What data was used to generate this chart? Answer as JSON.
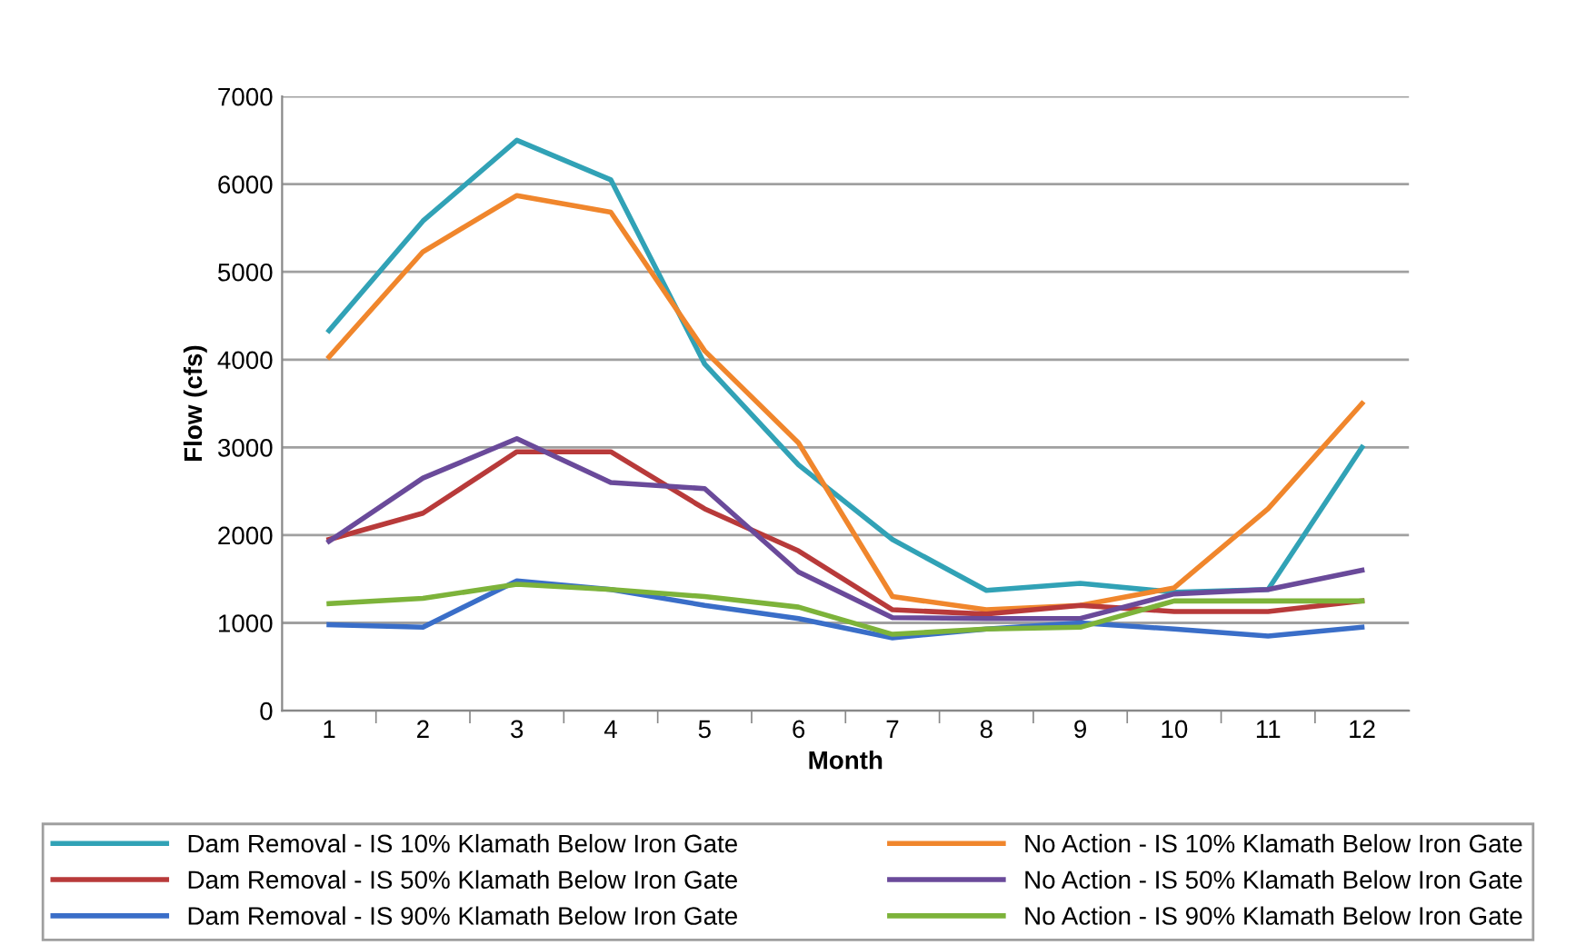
{
  "chart_data": {
    "type": "line",
    "xlabel": "Month",
    "ylabel": "Flow (cfs)",
    "categories": [
      "1",
      "2",
      "3",
      "4",
      "5",
      "6",
      "7",
      "8",
      "9",
      "10",
      "11",
      "12"
    ],
    "ylim": [
      0,
      7000
    ],
    "yticks": [
      0,
      1000,
      2000,
      3000,
      4000,
      5000,
      6000,
      7000
    ],
    "grid": "y",
    "legend": "bottom",
    "marker": "none",
    "line_style": "solid",
    "series": [
      {
        "name": "Dam Removal - IS 10% Klamath Below Iron Gate",
        "color": "#31a2b6",
        "values": [
          4330,
          5580,
          6500,
          6050,
          3950,
          2800,
          1950,
          1370,
          1450,
          1350,
          1380,
          3000
        ]
      },
      {
        "name": "No Action - IS 10% Klamath Below Iron Gate",
        "color": "#f0862c",
        "values": [
          4030,
          5230,
          5870,
          5680,
          4100,
          3050,
          1300,
          1150,
          1200,
          1400,
          2300,
          3500
        ]
      },
      {
        "name": "Dam Removal - IS 50% Klamath Below Iron Gate",
        "color": "#b83a3a",
        "values": [
          1950,
          2250,
          2950,
          2950,
          2300,
          1820,
          1150,
          1100,
          1200,
          1130,
          1130,
          1250
        ]
      },
      {
        "name": "No Action - IS 50% Klamath Below Iron Gate",
        "color": "#6a4a9a",
        "values": [
          1930,
          2650,
          3100,
          2600,
          2530,
          1580,
          1060,
          1050,
          1050,
          1330,
          1380,
          1600
        ]
      },
      {
        "name": "Dam Removal - IS 90% Klamath Below Iron Gate",
        "color": "#3a6ec8",
        "values": [
          980,
          950,
          1480,
          1380,
          1200,
          1050,
          830,
          930,
          1000,
          930,
          850,
          950
        ]
      },
      {
        "name": "No Action - IS 90% Klamath Below Iron Gate",
        "color": "#7db33a",
        "values": [
          1220,
          1280,
          1440,
          1380,
          1300,
          1180,
          870,
          930,
          950,
          1250,
          1250,
          1250
        ]
      }
    ]
  }
}
